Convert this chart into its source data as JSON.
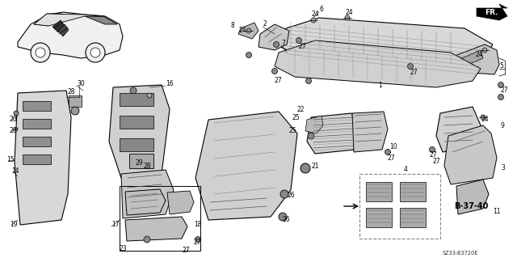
{
  "figsize": [
    6.4,
    3.19
  ],
  "dpi": 100,
  "bg": "#ffffff",
  "lc": "#000000",
  "gray1": "#b0b0b0",
  "gray2": "#888888",
  "gray3": "#cccccc",
  "gray4": "#555555",
  "diagram_id": "SZ33-B3720E",
  "fr_label": "FR.",
  "b_label": "B-37-40",
  "font_size": 5.5
}
